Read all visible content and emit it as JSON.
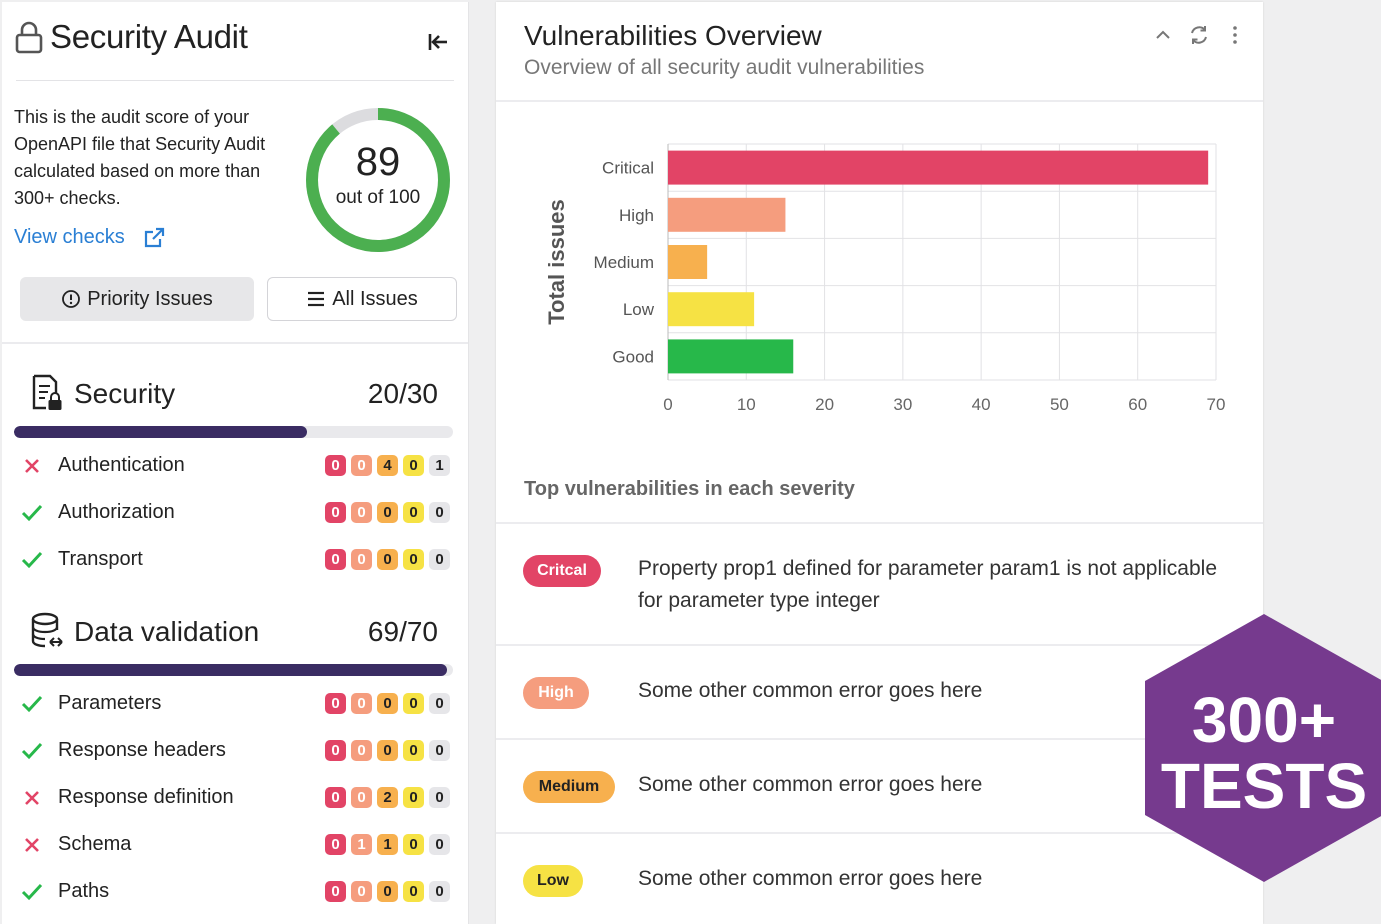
{
  "left_panel": {
    "title": "Security Audit",
    "description": "This is the audit score of your OpenAPI file that Security Audit calculated based on more than 300+ checks.",
    "view_checks": "View checks",
    "score": {
      "value": "89",
      "subtitle": "out of 100",
      "fraction": 0.89
    },
    "buttons": {
      "priority": "Priority Issues",
      "all": "All Issues"
    },
    "sections": [
      {
        "title": "Security",
        "score": "20/30",
        "progress": 0.667,
        "rows": [
          {
            "label": "Authentication",
            "status": "fail",
            "counts": [
              "0",
              "0",
              "4",
              "0",
              "1"
            ]
          },
          {
            "label": "Authorization",
            "status": "pass",
            "counts": [
              "0",
              "0",
              "0",
              "0",
              "0"
            ]
          },
          {
            "label": "Transport",
            "status": "pass",
            "counts": [
              "0",
              "0",
              "0",
              "0",
              "0"
            ]
          }
        ]
      },
      {
        "title": "Data validation",
        "score": "69/70",
        "progress": 0.986,
        "rows": [
          {
            "label": "Parameters",
            "status": "pass",
            "counts": [
              "0",
              "0",
              "0",
              "0",
              "0"
            ]
          },
          {
            "label": "Response headers",
            "status": "pass",
            "counts": [
              "0",
              "0",
              "0",
              "0",
              "0"
            ]
          },
          {
            "label": "Response definition",
            "status": "fail",
            "counts": [
              "0",
              "0",
              "2",
              "0",
              "0"
            ]
          },
          {
            "label": "Schema",
            "status": "fail",
            "counts": [
              "0",
              "1",
              "1",
              "0",
              "0"
            ]
          },
          {
            "label": "Paths",
            "status": "pass",
            "counts": [
              "0",
              "0",
              "0",
              "0",
              "0"
            ]
          }
        ]
      }
    ]
  },
  "right_panel": {
    "title": "Vulnerabilities Overview",
    "subtitle": "Overview of all security audit vulnerabilities",
    "top_title": "Top vulnerabilities in each severity",
    "vulnerabilities": [
      {
        "severity": "Critcal",
        "message": "Property prop1 defined for parameter param1 is not applicable for parameter type integer"
      },
      {
        "severity": "High",
        "message": "Some other common error goes here"
      },
      {
        "severity": "Medium",
        "message": "Some other common error goes here"
      },
      {
        "severity": "Low",
        "message": "Some other common error goes here"
      }
    ]
  },
  "badge": {
    "line1": "300+",
    "line2": "TESTS",
    "color": "#763a8e"
  },
  "chart_data": {
    "type": "bar",
    "orientation": "horizontal",
    "categories": [
      "Critical",
      "High",
      "Medium",
      "Low",
      "Good"
    ],
    "values": [
      69,
      15,
      5,
      11,
      16
    ],
    "colors": [
      "#e24466",
      "#f59d7e",
      "#f7b04e",
      "#f6e244",
      "#27b84a"
    ],
    "ylabel": "Total issues",
    "xlim": [
      0,
      70
    ],
    "xticks": [
      0,
      10,
      20,
      30,
      40,
      50,
      60,
      70
    ],
    "grid": true
  },
  "colors": {
    "critical": "#e24466",
    "high": "#f59d7e",
    "medium": "#f7b04e",
    "low": "#f6e244",
    "info": "#e6e6e9",
    "good": "#27b84a",
    "progress": "#3a2c63",
    "link": "#2a7fd4"
  }
}
